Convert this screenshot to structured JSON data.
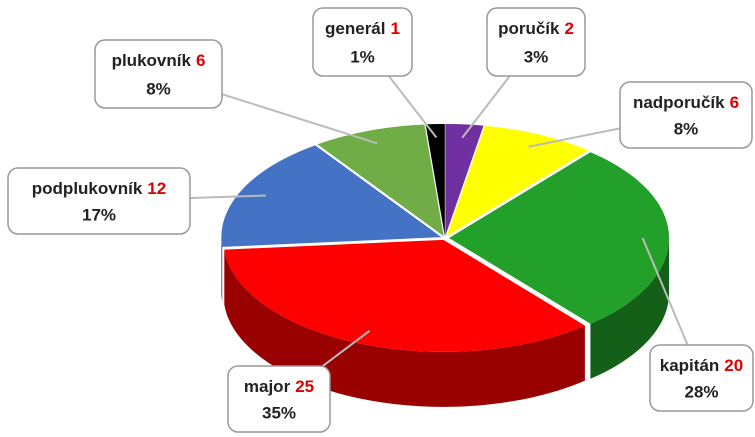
{
  "chart_data": {
    "type": "pie3d",
    "categories": [
      "poručík",
      "nadporučík",
      "kapitán",
      "major",
      "podplukovník",
      "plukovník",
      "generál"
    ],
    "values": [
      2,
      6,
      20,
      25,
      12,
      6,
      1
    ],
    "percent_labels": [
      "3%",
      "8%",
      "28%",
      "35%",
      "17%",
      "8%",
      "1%"
    ],
    "colors": [
      "#7030a0",
      "#ffff00",
      "#22a02a",
      "#ff0000",
      "#4472c4",
      "#70ad47",
      "#000000"
    ]
  }
}
